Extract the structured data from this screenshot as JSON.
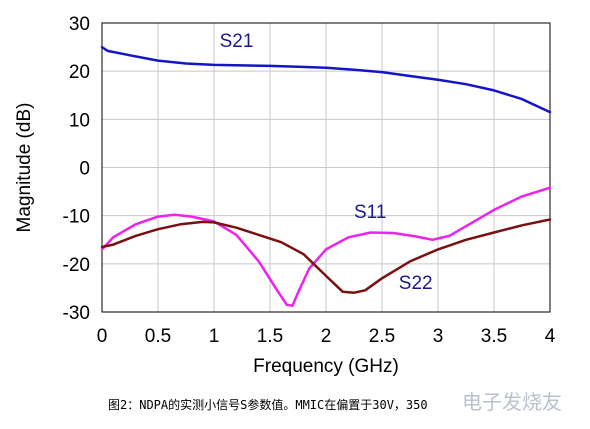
{
  "chart_data": {
    "type": "line",
    "title": "",
    "xlabel": "Frequency (GHz)",
    "ylabel": "Magnitude (dB)",
    "xlim": [
      0,
      4
    ],
    "ylim": [
      -30,
      30
    ],
    "xticks": [
      "0",
      "0.5",
      "1",
      "1.5",
      "2",
      "2.5",
      "3",
      "3.5",
      "4"
    ],
    "yticks": [
      "30",
      "20",
      "10",
      "0",
      "-10",
      "-20",
      "-30"
    ],
    "grid": true,
    "series": [
      {
        "name": "S21",
        "color": "#1515c8",
        "x": [
          0,
          0.05,
          0.25,
          0.5,
          0.75,
          1.0,
          1.25,
          1.5,
          1.75,
          2.0,
          2.25,
          2.5,
          2.75,
          3.0,
          3.25,
          3.5,
          3.75,
          4.0
        ],
        "y": [
          25,
          24.2,
          23.3,
          22.2,
          21.6,
          21.3,
          21.2,
          21.1,
          20.9,
          20.7,
          20.3,
          19.8,
          19.0,
          18.2,
          17.3,
          16.0,
          14.2,
          11.5
        ]
      },
      {
        "name": "S11",
        "color": "#ee22ee",
        "x": [
          0,
          0.1,
          0.3,
          0.5,
          0.65,
          0.8,
          1.0,
          1.2,
          1.4,
          1.55,
          1.65,
          1.7,
          1.75,
          1.85,
          2.0,
          2.2,
          2.4,
          2.6,
          2.8,
          2.95,
          3.1,
          3.3,
          3.5,
          3.75,
          4.0
        ],
        "y": [
          -17,
          -14.5,
          -11.8,
          -10.2,
          -9.8,
          -10.2,
          -11.2,
          -14.0,
          -19.5,
          -25.0,
          -28.5,
          -28.7,
          -26.0,
          -21.0,
          -17.0,
          -14.5,
          -13.5,
          -13.6,
          -14.3,
          -15.0,
          -14.2,
          -11.5,
          -8.8,
          -6.0,
          -4.2
        ]
      },
      {
        "name": "S22",
        "color": "#7a1010",
        "x": [
          0,
          0.1,
          0.3,
          0.5,
          0.7,
          0.9,
          1.0,
          1.2,
          1.4,
          1.6,
          1.8,
          2.0,
          2.15,
          2.25,
          2.35,
          2.5,
          2.75,
          3.0,
          3.25,
          3.5,
          3.75,
          4.0
        ],
        "y": [
          -16.5,
          -16.0,
          -14.2,
          -12.8,
          -11.8,
          -11.3,
          -11.4,
          -12.5,
          -14.0,
          -15.5,
          -18.0,
          -22.5,
          -25.8,
          -26.0,
          -25.5,
          -23.0,
          -19.5,
          -17.0,
          -15.0,
          -13.5,
          -12.0,
          -10.8
        ]
      }
    ],
    "annotations": [
      {
        "text": "S21",
        "x": 1.05,
        "y": 25.0
      },
      {
        "text": "S11",
        "x": 2.25,
        "y": -10.5
      },
      {
        "text": "S22",
        "x": 2.65,
        "y": -25.2
      }
    ]
  },
  "caption": "图2：NDPA的实测小信号S参数值。MMIC在偏置于30V，350",
  "watermark": "电子发烧友"
}
